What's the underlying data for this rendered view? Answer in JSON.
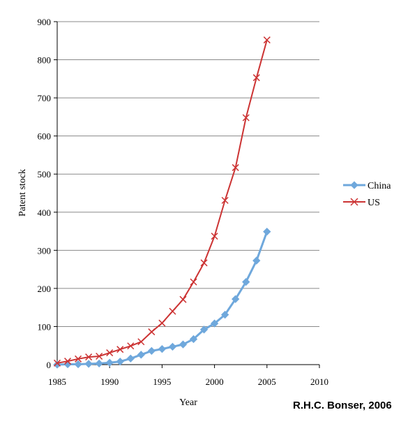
{
  "credit": "R.H.C. Bonser, 2006",
  "chart_data": {
    "type": "line",
    "xlabel": "Year",
    "ylabel": "Patent stock",
    "xlim": [
      1985,
      2010
    ],
    "ylim": [
      0,
      900
    ],
    "x_ticks": [
      1985,
      1990,
      1995,
      2000,
      2005,
      2010
    ],
    "y_ticks": [
      0,
      100,
      200,
      300,
      400,
      500,
      600,
      700,
      800,
      900
    ],
    "grid": "horizontal",
    "legend_position": "right",
    "series": [
      {
        "name": "China",
        "color": "#6fa8dc",
        "marker": "diamond",
        "x": [
          1985,
          1986,
          1987,
          1988,
          1989,
          1990,
          1991,
          1992,
          1993,
          1994,
          1995,
          1996,
          1997,
          1998,
          1999,
          2000,
          2001,
          2002,
          2003,
          2004,
          2005
        ],
        "y": [
          0,
          1,
          1,
          2,
          3,
          5,
          8,
          16,
          26,
          36,
          41,
          47,
          53,
          67,
          92,
          108,
          131,
          172,
          217,
          273,
          349
        ]
      },
      {
        "name": "US",
        "color": "#cc3333",
        "marker": "x",
        "x": [
          1985,
          1986,
          1987,
          1988,
          1989,
          1990,
          1991,
          1992,
          1993,
          1994,
          1995,
          1996,
          1997,
          1998,
          1999,
          2000,
          2001,
          2002,
          2003,
          2004,
          2005
        ],
        "y": [
          4,
          9,
          15,
          20,
          22,
          31,
          40,
          49,
          60,
          86,
          109,
          140,
          171,
          217,
          267,
          337,
          431,
          517,
          648,
          753,
          852
        ]
      }
    ]
  }
}
